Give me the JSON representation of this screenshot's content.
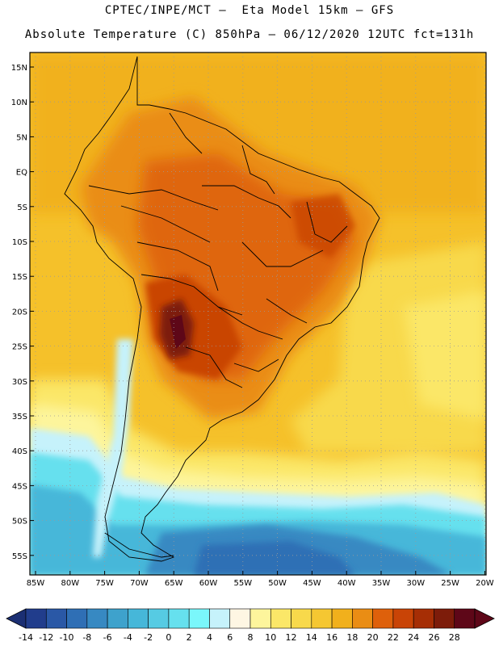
{
  "header": {
    "title_line1": "CPTEC/INPE/MCT –  Eta Model 15km – GFS",
    "title_line2": "Absolute Temperature (C) 850hPa – 06/12/2020 12UTC fct=131h"
  },
  "map": {
    "lat_labels": [
      "15N",
      "10N",
      "5N",
      "EQ",
      "5S",
      "10S",
      "15S",
      "20S",
      "25S",
      "30S",
      "35S",
      "40S",
      "45S",
      "50S",
      "55S"
    ],
    "lon_labels": [
      "85W",
      "80W",
      "75W",
      "70W",
      "65W",
      "60W",
      "55W",
      "50W",
      "45W",
      "40W",
      "35W",
      "30W",
      "25W",
      "20W"
    ]
  },
  "colorbar": {
    "labels": [
      "-14",
      "-12",
      "-10",
      "-8",
      "-6",
      "-4",
      "-2",
      "0",
      "2",
      "4",
      "6",
      "8",
      "10",
      "12",
      "14",
      "16",
      "18",
      "20",
      "22",
      "24",
      "26",
      "28"
    ],
    "colors": [
      "#213d8c",
      "#2a58a6",
      "#2f6fb5",
      "#3789c2",
      "#3ea2cc",
      "#46b7d9",
      "#56cbe3",
      "#66e0ee",
      "#7af7fb",
      "#c6f2fb",
      "#fef6e3",
      "#fdf59c",
      "#fbe768",
      "#f8d94b",
      "#f5c732",
      "#f1b01c",
      "#ea8d14",
      "#de600b",
      "#c94406",
      "#a62e05",
      "#7d1c0a",
      "#5e0718"
    ],
    "arrow_left_color": "#1b2f73",
    "arrow_right_color": "#5e0718"
  }
}
